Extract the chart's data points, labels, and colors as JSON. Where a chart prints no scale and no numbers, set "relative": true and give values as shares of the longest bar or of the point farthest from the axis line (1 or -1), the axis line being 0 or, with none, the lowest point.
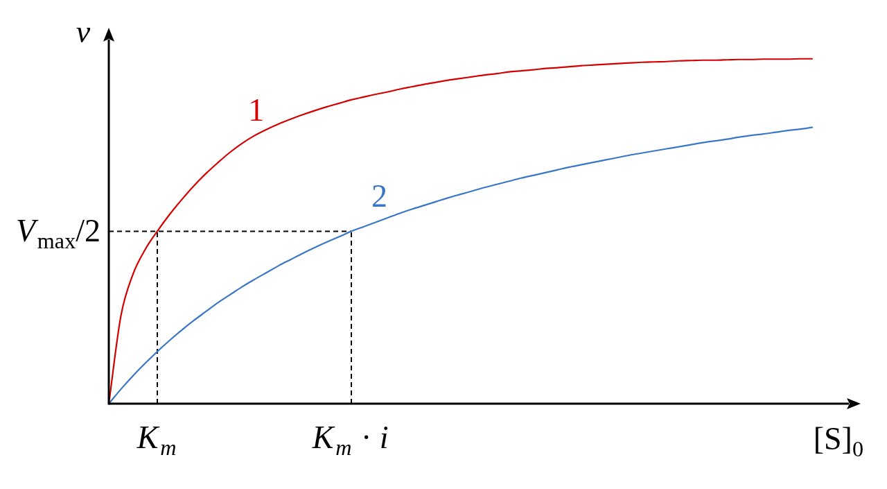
{
  "chart_data": {
    "type": "line",
    "xlabel": "[S]$_{0}$",
    "ylabel": "v",
    "relative": true,
    "categories": [
      null,
      null,
      null,
      null,
      "K$_{m}$",
      null,
      null,
      null,
      null,
      null,
      null,
      null,
      null,
      null,
      null,
      null,
      null,
      null,
      null,
      null,
      "K$_{m}$ · i",
      null,
      null,
      null,
      null,
      null,
      null,
      null,
      null,
      null,
      null,
      null,
      null,
      null,
      null,
      null,
      null,
      null,
      null,
      null,
      null,
      null,
      null,
      null,
      null,
      null,
      null,
      null,
      null,
      null,
      null,
      null,
      null,
      null,
      null,
      null,
      null,
      null,
      null,
      null,
      null,
      null,
      null
    ],
    "series": [
      {
        "name": "1",
        "color": "#d40000",
        "values": [
          0,
          0.255,
          0.376,
          0.447,
          0.5,
          0.548,
          0.591,
          0.631,
          0.667,
          0.699,
          0.729,
          0.755,
          0.777,
          0.795,
          0.811,
          0.825,
          0.838,
          0.85,
          0.861,
          0.871,
          0.881,
          0.889,
          0.897,
          0.904,
          0.912,
          0.919,
          0.926,
          0.932,
          0.938,
          0.943,
          0.948,
          0.953,
          0.957,
          0.962,
          0.965,
          0.968,
          0.972,
          0.974,
          0.977,
          0.98,
          0.982,
          0.984,
          0.986,
          0.988,
          0.99,
          0.991,
          0.992,
          0.994,
          0.995,
          0.996,
          0.996,
          0.997,
          0.998,
          0.998,
          0.999,
          0.999,
          0.999,
          1,
          1,
          null,
          null,
          null,
          null
        ]
      },
      {
        "name": "2",
        "color": "#3a76c8",
        "values": [
          0,
          0.042,
          0.081,
          0.117,
          0.151,
          0.183,
          0.213,
          0.241,
          0.267,
          0.293,
          0.316,
          0.339,
          0.36,
          0.38,
          0.4,
          0.418,
          0.436,
          0.453,
          0.469,
          0.484,
          0.5,
          0.513,
          0.526,
          0.539,
          0.552,
          0.564,
          0.575,
          0.586,
          0.597,
          0.607,
          0.617,
          0.627,
          0.636,
          0.645,
          0.654,
          0.662,
          0.67,
          0.678,
          0.686,
          0.693,
          0.7,
          0.707,
          0.714,
          0.721,
          0.727,
          0.733,
          0.739,
          0.745,
          0.751,
          0.757,
          0.762,
          0.767,
          0.773,
          0.778,
          0.782,
          0.787,
          0.792,
          0.796,
          0.801,
          null,
          null,
          null,
          null
        ]
      }
    ],
    "ref_lines": [
      {
        "axis": "x",
        "value": "K$_{m}$",
        "color": "#000000",
        "line_style": "dashed"
      },
      {
        "axis": "x",
        "value": "K$_{m}$ · i",
        "color": "#000000",
        "line_style": "dashed"
      },
      {
        "axis": "y",
        "value": 0.5,
        "label": "V$_{max}$/2",
        "color": "#000000",
        "line_style": "dashed"
      }
    ],
    "marker": "none",
    "legend": false
  }
}
